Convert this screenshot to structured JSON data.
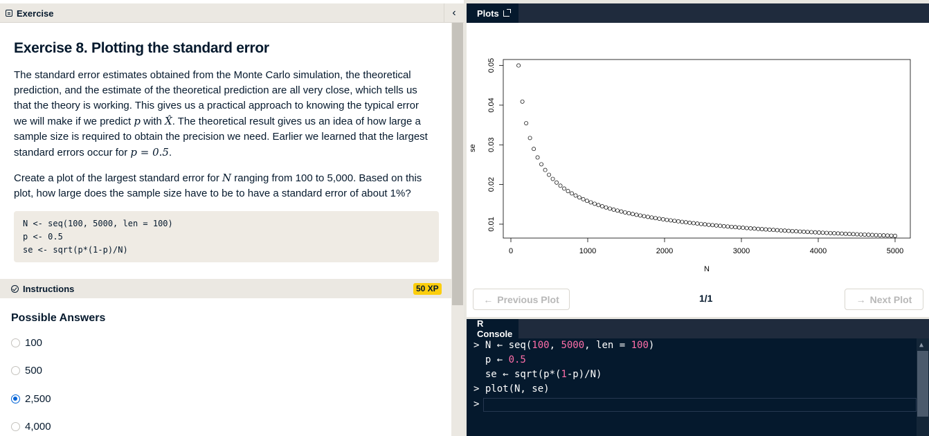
{
  "left_tab": {
    "label": "Exercise"
  },
  "exercise": {
    "title": "Exercise 8. Plotting the standard error",
    "para1_lines": [
      "The standard error estimates obtained from the Monte Carlo simulation, the theoretical",
      "prediction, and the estimate of the theoretical prediction are all very close, which tells us",
      "that the theory is working. This gives us a practical approach to knowing the typical error"
    ],
    "para1_line4_a": "we will make if we predict ",
    "para1_line4_p": "p",
    "para1_line4_b": " with ",
    "para1_line4_x": "X̂",
    "para1_line4_c": ". The theoretical result gives us an idea of how large a",
    "para1_line5": "sample size is required to obtain the precision we need. Earlier we learned that the largest",
    "para1_line6_a": "standard errors occur for ",
    "para1_line6_math": "p = 0.5",
    "para1_line6_b": ".",
    "para2_a": "Create a plot of the largest standard error for ",
    "para2_N": "N",
    "para2_b": " ranging from 100 to 5,000. Based on this",
    "para2_line2": "plot, how large does the sample size have to be to have a standard error of about 1%?",
    "code": "N <- seq(100, 5000, len = 100)\np <- 0.5\nse <- sqrt(p*(1-p)/N)"
  },
  "instructions": {
    "label": "Instructions",
    "xp": "50 XP"
  },
  "answers": {
    "title": "Possible Answers",
    "options": [
      {
        "label": "100",
        "selected": false
      },
      {
        "label": "500",
        "selected": false
      },
      {
        "label": "2,500",
        "selected": true
      },
      {
        "label": "4,000",
        "selected": false
      }
    ]
  },
  "plots_tab": {
    "label": "Plots"
  },
  "plot_nav": {
    "prev": "Previous Plot",
    "next": "Next Plot",
    "counter": "1/1"
  },
  "console_tab": {
    "label": "R Console"
  },
  "console": {
    "prompt": ">",
    "lines": [
      {
        "prompt": ">",
        "parts": [
          [
            "N ← seq(",
            "t"
          ],
          [
            "100",
            "n"
          ],
          [
            ", ",
            "t"
          ],
          [
            "5000",
            "n"
          ],
          [
            ", len = ",
            "t"
          ],
          [
            "100",
            "n"
          ],
          [
            ")",
            "t"
          ]
        ]
      },
      {
        "prompt": " ",
        "parts": [
          [
            "p ← ",
            "t"
          ],
          [
            "0.5",
            "n"
          ]
        ]
      },
      {
        "prompt": " ",
        "parts": [
          [
            "se ← sqrt(p*(",
            "t"
          ],
          [
            "1",
            "n"
          ],
          [
            "-p)/N)",
            "t"
          ]
        ]
      },
      {
        "prompt": ">",
        "parts": [
          [
            "plot(N, se)",
            "t"
          ]
        ]
      }
    ]
  },
  "chart_data": {
    "type": "scatter",
    "xlabel": "N",
    "ylabel": "se",
    "x_ticks": [
      0,
      1000,
      2000,
      3000,
      4000,
      5000
    ],
    "y_ticks": [
      0.01,
      0.02,
      0.03,
      0.04,
      0.05
    ],
    "xlim": [
      0,
      5000
    ],
    "ylim": [
      0.0065,
      0.0515
    ],
    "series": [
      {
        "formula": "se = sqrt(0.5*(1-0.5)/N)",
        "x_start": 100,
        "x_end": 5000,
        "n": 100
      }
    ],
    "marker": "open-circle"
  }
}
